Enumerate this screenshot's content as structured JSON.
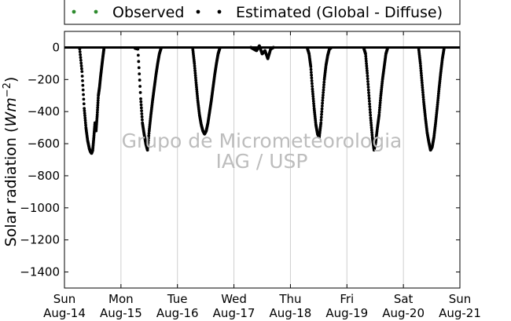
{
  "chart_data": {
    "type": "scatter",
    "ylabel": "Solar radiation",
    "ylabel_unit_base": "Wm",
    "ylabel_unit_exp": "−2",
    "ylim": [
      -1500,
      100
    ],
    "yticks": [
      0,
      -200,
      -400,
      -600,
      -800,
      -1000,
      -1200,
      -1400
    ],
    "xlim": [
      0,
      7
    ],
    "xticks": [
      {
        "pos": 0,
        "day": "Sun",
        "date": "Aug-14"
      },
      {
        "pos": 1,
        "day": "Mon",
        "date": "Aug-15"
      },
      {
        "pos": 2,
        "day": "Tue",
        "date": "Aug-16"
      },
      {
        "pos": 3,
        "day": "Wed",
        "date": "Aug-17"
      },
      {
        "pos": 4,
        "day": "Thu",
        "date": "Aug-18"
      },
      {
        "pos": 5,
        "day": "Fri",
        "date": "Aug-19"
      },
      {
        "pos": 6,
        "day": "Sat",
        "date": "Aug-20"
      },
      {
        "pos": 7,
        "day": "Sun",
        "date": "Aug-21"
      }
    ],
    "grid": "vertical",
    "legend_position": "top",
    "series": [
      {
        "name": "Observed",
        "color": "#2e8b2e",
        "values": []
      },
      {
        "name": "Estimated (Global - Diffuse)",
        "color": "#000000",
        "days": [
          {
            "x": [
              0.27,
              0.31,
              0.35,
              0.38,
              0.41,
              0.44,
              0.46,
              0.48,
              0.5,
              0.52,
              0.54,
              0.56,
              0.58,
              0.6,
              0.62,
              0.64,
              0.66,
              0.68,
              0.7
            ],
            "y": [
              -10,
              -150,
              -380,
              -500,
              -580,
              -630,
              -650,
              -660,
              -640,
              -560,
              -470,
              -520,
              -420,
              -300,
              -250,
              -180,
              -120,
              -60,
              -5
            ]
          },
          {
            "x": [
              1.25,
              1.3,
              1.35,
              1.38,
              1.41,
              1.44,
              1.47,
              1.5,
              1.53,
              1.56,
              1.59,
              1.62,
              1.65,
              1.68,
              1.71
            ],
            "y": [
              -5,
              -10,
              -320,
              -470,
              -540,
              -600,
              -640,
              -520,
              -420,
              -330,
              -250,
              -170,
              -100,
              -40,
              -5
            ]
          },
          {
            "x": [
              2.27,
              2.3,
              2.33,
              2.36,
              2.39,
              2.42,
              2.45,
              2.48,
              2.51,
              2.54,
              2.57,
              2.6,
              2.63,
              2.66,
              2.69,
              2.72,
              2.75
            ],
            "y": [
              -5,
              -100,
              -220,
              -330,
              -420,
              -480,
              -520,
              -540,
              -520,
              -470,
              -400,
              -330,
              -250,
              -170,
              -100,
              -40,
              -5
            ]
          },
          {
            "x": [
              3.3,
              3.35,
              3.4,
              3.45,
              3.5,
              3.55,
              3.6,
              3.65,
              3.7
            ],
            "y": [
              0,
              -10,
              -20,
              10,
              -40,
              -20,
              -70,
              -10,
              0
            ]
          },
          {
            "x": [
              4.3,
              4.33,
              4.36,
              4.39,
              4.42,
              4.45,
              4.48,
              4.51,
              4.54,
              4.57,
              4.6,
              4.63,
              4.66,
              4.69,
              4.72
            ],
            "y": [
              -5,
              -40,
              -120,
              -260,
              -380,
              -480,
              -540,
              -560,
              -470,
              -330,
              -200,
              -110,
              -50,
              -10,
              -2
            ]
          },
          {
            "x": [
              5.3,
              5.33,
              5.36,
              5.39,
              5.42,
              5.45,
              5.48,
              5.51,
              5.54,
              5.57,
              5.6,
              5.63,
              5.66,
              5.69,
              5.72
            ],
            "y": [
              -5,
              -40,
              -160,
              -300,
              -440,
              -560,
              -640,
              -590,
              -500,
              -420,
              -300,
              -200,
              -120,
              -40,
              -5
            ]
          },
          {
            "x": [
              6.27,
              6.3,
              6.33,
              6.36,
              6.39,
              6.42,
              6.45,
              6.48,
              6.51,
              6.54,
              6.57,
              6.6,
              6.63,
              6.66,
              6.69,
              6.72
            ],
            "y": [
              -5,
              -100,
              -220,
              -340,
              -440,
              -530,
              -590,
              -640,
              -620,
              -560,
              -470,
              -370,
              -260,
              -160,
              -70,
              -5
            ]
          }
        ]
      }
    ]
  },
  "watermark": {
    "line1": "Grupo de Micrometeorologia",
    "line2": "IAG / USP"
  }
}
